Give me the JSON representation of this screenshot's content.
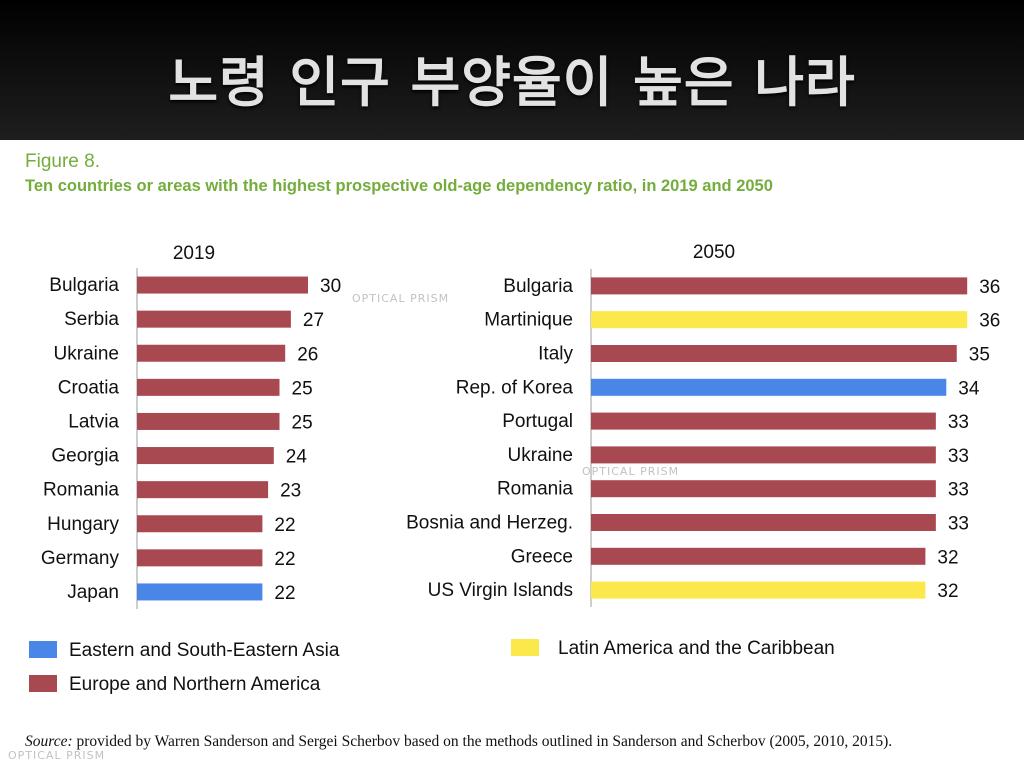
{
  "header": {
    "title": "노령 인구 부양율이 높은 나라"
  },
  "figure": {
    "number": "Figure 8.",
    "title": "Ten countries or areas with the highest prospective old-age dependency ratio, in 2019 and 2050"
  },
  "colors": {
    "asia": "#4a86e8",
    "europe": "#a84850",
    "latam": "#fbe84b",
    "green": "#74ad3b"
  },
  "legend": [
    {
      "label": "Eastern and South-Eastern Asia",
      "color": "#4a86e8"
    },
    {
      "label": "Europe and Northern America",
      "color": "#a84850"
    },
    {
      "label": "Latin America and the Caribbean",
      "color": "#fbe84b"
    }
  ],
  "source": {
    "label": "Source:",
    "text": " provided by Warren Sanderson and Sergei Scherbov based on the methods outlined in Sanderson and Scherbov (2005, 2010, 2015)."
  },
  "watermark": "OPTICAL PRISM",
  "chart_data": [
    {
      "type": "bar",
      "orientation": "horizontal",
      "title": "2019",
      "categories": [
        "Bulgaria",
        "Serbia",
        "Ukraine",
        "Croatia",
        "Latvia",
        "Georgia",
        "Romania",
        "Hungary",
        "Germany",
        "Japan"
      ],
      "values": [
        30,
        27,
        26,
        25,
        25,
        24,
        23,
        22,
        22,
        22
      ],
      "regions": [
        "Europe and Northern America",
        "Europe and Northern America",
        "Europe and Northern America",
        "Europe and Northern America",
        "Europe and Northern America",
        "Europe and Northern America",
        "Europe and Northern America",
        "Europe and Northern America",
        "Europe and Northern America",
        "Eastern and South-Eastern Asia"
      ],
      "xlim": [
        0,
        30
      ]
    },
    {
      "type": "bar",
      "orientation": "horizontal",
      "title": "2050",
      "categories": [
        "Bulgaria",
        "Martinique",
        "Italy",
        "Rep. of Korea",
        "Portugal",
        "Ukraine",
        "Romania",
        "Bosnia and Herzeg.",
        "Greece",
        "US Virgin Islands"
      ],
      "values": [
        36,
        36,
        35,
        34,
        33,
        33,
        33,
        33,
        32,
        32
      ],
      "regions": [
        "Europe and Northern America",
        "Latin America and the Caribbean",
        "Europe and Northern America",
        "Eastern and South-Eastern Asia",
        "Europe and Northern America",
        "Europe and Northern America",
        "Europe and Northern America",
        "Europe and Northern America",
        "Europe and Northern America",
        "Latin America and the Caribbean"
      ],
      "xlim": [
        0,
        36
      ]
    }
  ]
}
